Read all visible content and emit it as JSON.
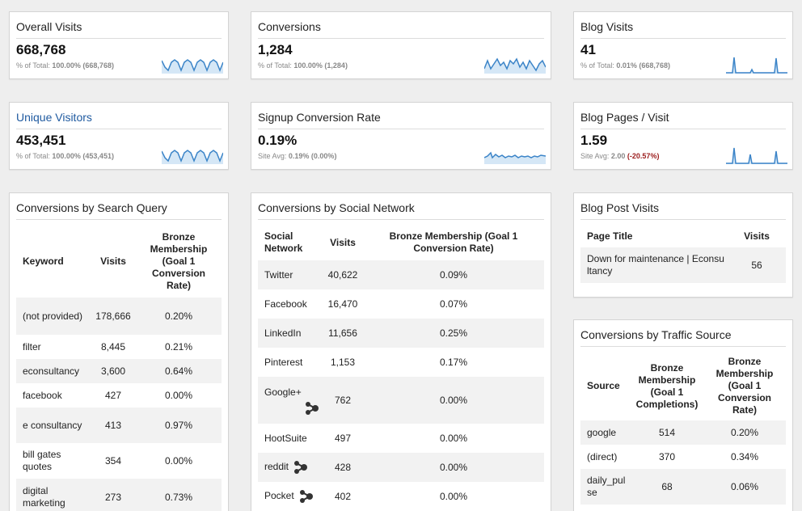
{
  "metrics": {
    "overall_visits": {
      "title": "Overall Visits",
      "value": "668,768",
      "sub_prefix": "% of Total:",
      "sub_pct": "100.00%",
      "sub_paren": "(668,768)"
    },
    "conversions": {
      "title": "Conversions",
      "value": "1,284",
      "sub_prefix": "% of Total:",
      "sub_pct": "100.00%",
      "sub_paren": "(1,284)"
    },
    "blog_visits": {
      "title": "Blog Visits",
      "value": "41",
      "sub_prefix": "% of Total:",
      "sub_pct": "0.01%",
      "sub_paren": "(668,768)"
    },
    "unique_visitors": {
      "title": "Unique Visitors",
      "value": "453,451",
      "sub_prefix": "% of Total:",
      "sub_pct": "100.00%",
      "sub_paren": "(453,451)"
    },
    "signup_conversion_rate": {
      "title": "Signup Conversion Rate",
      "value": "0.19%",
      "sub_prefix": "Site Avg:",
      "sub_pct": "0.19%",
      "sub_paren": "(0.00%)"
    },
    "blog_pages_visit": {
      "title": "Blog Pages / Visit",
      "value": "1.59",
      "sub_prefix": "Site Avg:",
      "sub_pct": "2.00",
      "sub_paren": "(-20.57%)"
    }
  },
  "search_query": {
    "title": "Conversions by Search Query",
    "headers": {
      "keyword": "Keyword",
      "visits": "Visits",
      "rate": "Bronze Membership (Goal 1 Conversion Rate)"
    },
    "rows": [
      {
        "keyword": "(not provided)",
        "visits": "178,666",
        "rate": "0.20%"
      },
      {
        "keyword": "filter",
        "visits": "8,445",
        "rate": "0.21%"
      },
      {
        "keyword": "econsultancy",
        "visits": "3,600",
        "rate": "0.64%"
      },
      {
        "keyword": "facebook",
        "visits": "427",
        "rate": "0.00%"
      },
      {
        "keyword": "e consultancy",
        "visits": "413",
        "rate": "0.97%"
      },
      {
        "keyword": "bill gates quotes",
        "visits": "354",
        "rate": "0.00%"
      },
      {
        "keyword": "digital marketing",
        "visits": "273",
        "rate": "0.73%"
      }
    ]
  },
  "social_network": {
    "title": "Conversions by Social Network",
    "headers": {
      "network": "Social Network",
      "visits": "Visits",
      "rate": "Bronze Membership (Goal 1 Conversion Rate)"
    },
    "rows": [
      {
        "network": "Twitter",
        "visits": "40,622",
        "rate": "0.09%"
      },
      {
        "network": "Facebook",
        "visits": "16,470",
        "rate": "0.07%"
      },
      {
        "network": "LinkedIn",
        "visits": "11,656",
        "rate": "0.25%"
      },
      {
        "network": "Pinterest",
        "visits": "1,153",
        "rate": "0.17%"
      },
      {
        "network": "Google+",
        "visits": "762",
        "rate": "0.00%"
      },
      {
        "network": "HootSuite",
        "visits": "497",
        "rate": "0.00%"
      },
      {
        "network": "reddit",
        "visits": "428",
        "rate": "0.00%"
      },
      {
        "network": "Pocket",
        "visits": "402",
        "rate": "0.00%"
      }
    ]
  },
  "blog_post": {
    "title": "Blog Post Visits",
    "headers": {
      "page": "Page Title",
      "visits": "Visits"
    },
    "rows": [
      {
        "page": "Down for maintenance | Econsultancy",
        "visits": "56"
      }
    ]
  },
  "traffic_source": {
    "title": "Conversions by Traffic Source",
    "headers": {
      "source": "Source",
      "completions": "Bronze Membership (Goal 1 Completions)",
      "rate": "Bronze Membership (Goal 1 Conversion Rate)"
    },
    "rows": [
      {
        "source": "google",
        "completions": "514",
        "rate": "0.20%"
      },
      {
        "source": "(direct)",
        "completions": "370",
        "rate": "0.34%"
      },
      {
        "source": "daily_pulse",
        "completions": "68",
        "rate": "0.06%"
      }
    ]
  },
  "colors": {
    "spark_line": "#3b84c8",
    "spark_fill": "#d5e7f6",
    "link_title": "#1f5aa0",
    "negative": "#9b1c1c"
  }
}
